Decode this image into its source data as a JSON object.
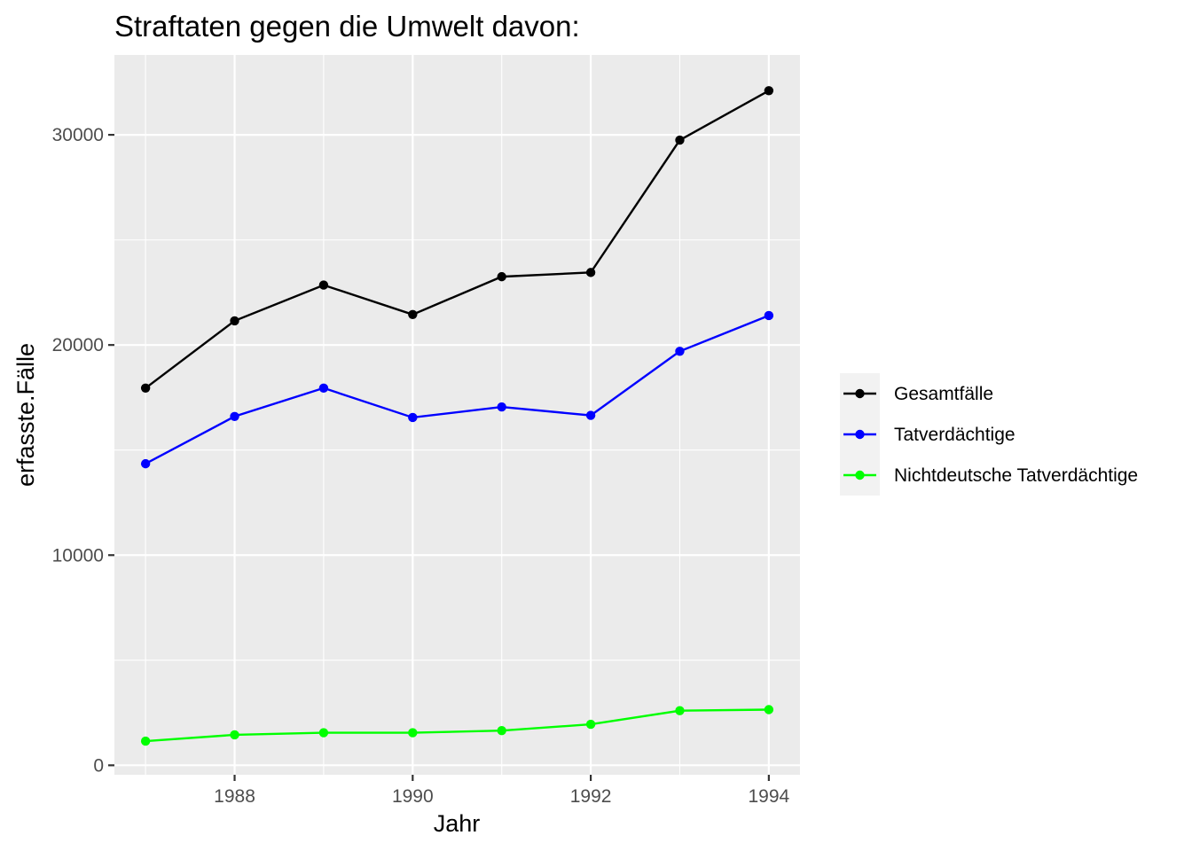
{
  "chart_data": {
    "type": "line",
    "title": "Straftaten gegen die Umwelt davon:",
    "xlabel": "Jahr",
    "ylabel": "erfasste.Fälle",
    "x": [
      1987,
      1988,
      1989,
      1990,
      1991,
      1992,
      1993,
      1994
    ],
    "xlim": [
      1986.65,
      1994.35
    ],
    "ylim": [
      -450,
      33800
    ],
    "x_ticks": [
      1988,
      1990,
      1992,
      1994
    ],
    "x_tick_labels": [
      "1988",
      "1990",
      "1992",
      "1994"
    ],
    "y_ticks": [
      0,
      10000,
      20000,
      30000
    ],
    "y_tick_labels": [
      "0",
      "10000",
      "20000",
      "30000"
    ],
    "y_minor_ticks": [
      5000,
      15000,
      25000
    ],
    "x_minor_ticks": [
      1987,
      1989,
      1991,
      1993
    ],
    "grid": true,
    "legend_position": "right",
    "series": [
      {
        "name": "Gesamtfälle",
        "color": "#000000",
        "values": [
          17950,
          21150,
          22850,
          21450,
          23250,
          23450,
          29750,
          32100
        ]
      },
      {
        "name": "Tatverdächtige",
        "color": "#0000ff",
        "values": [
          14350,
          16600,
          17950,
          16550,
          17050,
          16650,
          19700,
          21400
        ]
      },
      {
        "name": "Nichtdeutsche Tatverdächtige",
        "color": "#00ff00",
        "values": [
          1150,
          1450,
          1550,
          1550,
          1650,
          1950,
          2600,
          2650
        ]
      }
    ]
  }
}
